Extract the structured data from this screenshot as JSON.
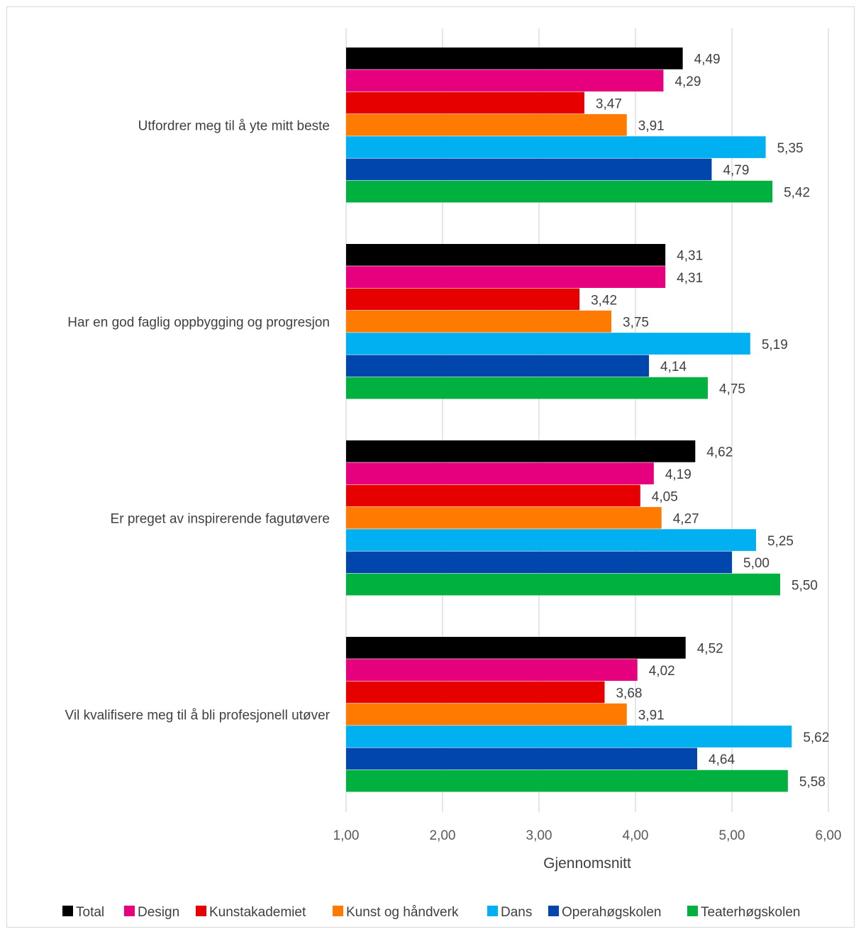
{
  "chart_data": {
    "type": "bar",
    "orientation": "horizontal",
    "categories": [
      "Utfordrer meg til å yte mitt beste",
      "Har en god faglig oppbygging og progresjon",
      "Er preget av inspirerende fagutøvere",
      "Vil kvalifisere meg til å bli profesjonell utøver"
    ],
    "series": [
      {
        "name": "Total",
        "color": "#000000",
        "values": [
          4.49,
          4.31,
          4.62,
          4.52
        ],
        "labels": [
          "4,49",
          "4,31",
          "4,62",
          "4,52"
        ]
      },
      {
        "name": "Design",
        "color": "#E6007E",
        "values": [
          4.29,
          4.31,
          4.19,
          4.02
        ],
        "labels": [
          "4,29",
          "4,31",
          "4,19",
          "4,02"
        ]
      },
      {
        "name": "Kunstakademiet",
        "color": "#E60000",
        "values": [
          3.47,
          3.42,
          4.05,
          3.68
        ],
        "labels": [
          "3,47",
          "3,42",
          "4,05",
          "3,68"
        ]
      },
      {
        "name": "Kunst og håndverk",
        "color": "#FF7A00",
        "values": [
          3.91,
          3.75,
          4.27,
          3.91
        ],
        "labels": [
          "3,91",
          "3,75",
          "4,27",
          "3,91"
        ]
      },
      {
        "name": "Dans",
        "color": "#00B0F0",
        "values": [
          5.35,
          5.19,
          5.25,
          5.62
        ],
        "labels": [
          "5,35",
          "5,19",
          "5,25",
          "5,62"
        ]
      },
      {
        "name": "Operahøgskolen",
        "color": "#0046AD",
        "values": [
          4.79,
          4.14,
          5.0,
          4.64
        ],
        "labels": [
          "4,79",
          "4,14",
          "5,00",
          "4,64"
        ]
      },
      {
        "name": "Teaterhøgskolen",
        "color": "#00B140",
        "values": [
          5.42,
          4.75,
          5.5,
          5.58
        ],
        "labels": [
          "5,42",
          "4,75",
          "5,50",
          "5,58"
        ]
      }
    ],
    "xlim": [
      1,
      6
    ],
    "xticks": [
      1,
      2,
      3,
      4,
      5,
      6
    ],
    "xtick_labels": [
      "1,00",
      "2,00",
      "3,00",
      "4,00",
      "5,00",
      "6,00"
    ],
    "xlabel": "Gjennomsnitt",
    "ylabel": "",
    "title": "",
    "grid": "vertical",
    "legend_position": "bottom",
    "gridline_color": "#d9d9d9"
  }
}
